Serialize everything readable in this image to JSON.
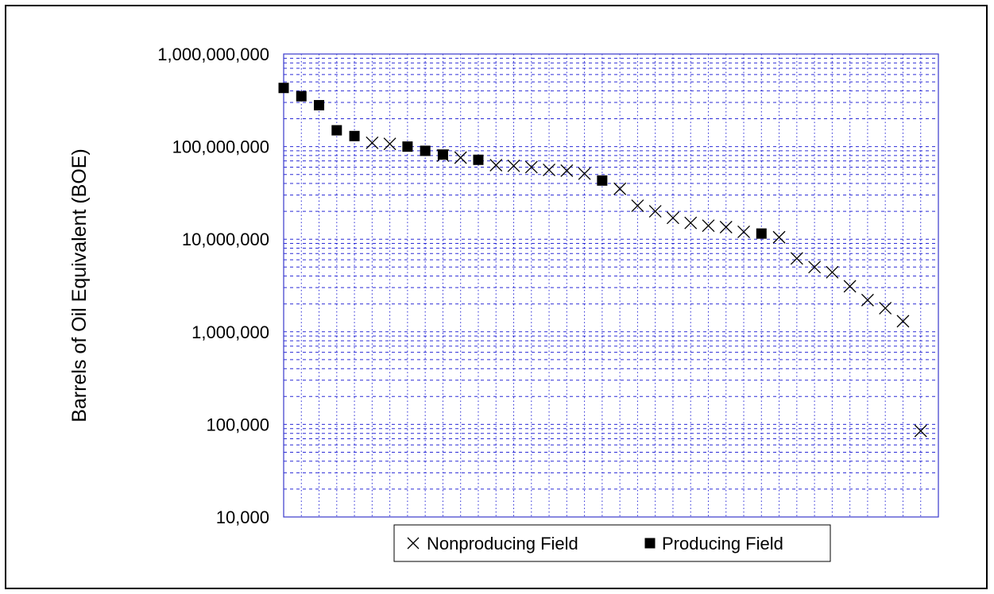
{
  "chart_data": {
    "type": "scatter",
    "title": "",
    "xlabel": "",
    "ylabel": "Barrels of Oil Equivalent (BOE)",
    "y_scale": "log",
    "ylim": [
      10000,
      1000000000
    ],
    "y_ticks": [
      {
        "value": 10000,
        "label": "10,000"
      },
      {
        "value": 100000,
        "label": "100,000"
      },
      {
        "value": 1000000,
        "label": "1,000,000"
      },
      {
        "value": 10000000,
        "label": "10,000,000"
      },
      {
        "value": 100000000,
        "label": "100,000,000"
      },
      {
        "value": 1000000000,
        "label": "1,000,000,000"
      }
    ],
    "x_range": [
      1,
      38
    ],
    "grid": true,
    "legend_position": "bottom",
    "colors": {
      "grid": "#2b2bd6",
      "plot_border": "#3a3acc",
      "markers": "#000000"
    },
    "series": [
      {
        "name": "Nonproducing Field",
        "marker": "x-icon",
        "points": [
          {
            "x": 6,
            "y": 110000000
          },
          {
            "x": 7,
            "y": 107000000
          },
          {
            "x": 10,
            "y": 80000000
          },
          {
            "x": 11,
            "y": 76000000
          },
          {
            "x": 13,
            "y": 63000000
          },
          {
            "x": 14,
            "y": 62000000
          },
          {
            "x": 15,
            "y": 60000000
          },
          {
            "x": 16,
            "y": 56000000
          },
          {
            "x": 17,
            "y": 55000000
          },
          {
            "x": 18,
            "y": 51000000
          },
          {
            "x": 20,
            "y": 35000000
          },
          {
            "x": 21,
            "y": 23000000
          },
          {
            "x": 22,
            "y": 20000000
          },
          {
            "x": 23,
            "y": 17000000
          },
          {
            "x": 24,
            "y": 15000000
          },
          {
            "x": 25,
            "y": 14000000
          },
          {
            "x": 26,
            "y": 13500000
          },
          {
            "x": 27,
            "y": 12000000
          },
          {
            "x": 29,
            "y": 10500000
          },
          {
            "x": 30,
            "y": 6200000
          },
          {
            "x": 31,
            "y": 5000000
          },
          {
            "x": 32,
            "y": 4400000
          },
          {
            "x": 33,
            "y": 3100000
          },
          {
            "x": 34,
            "y": 2200000
          },
          {
            "x": 35,
            "y": 1800000
          },
          {
            "x": 36,
            "y": 1300000
          },
          {
            "x": 37,
            "y": 85000
          }
        ]
      },
      {
        "name": "Producing Field",
        "marker": "filled-square-icon",
        "points": [
          {
            "x": 1,
            "y": 430000000
          },
          {
            "x": 2,
            "y": 350000000
          },
          {
            "x": 3,
            "y": 280000000
          },
          {
            "x": 4,
            "y": 150000000
          },
          {
            "x": 5,
            "y": 130000000
          },
          {
            "x": 8,
            "y": 100000000
          },
          {
            "x": 9,
            "y": 90000000
          },
          {
            "x": 10,
            "y": 82000000
          },
          {
            "x": 12,
            "y": 72000000
          },
          {
            "x": 19,
            "y": 43000000
          },
          {
            "x": 28,
            "y": 11500000
          }
        ]
      }
    ]
  }
}
